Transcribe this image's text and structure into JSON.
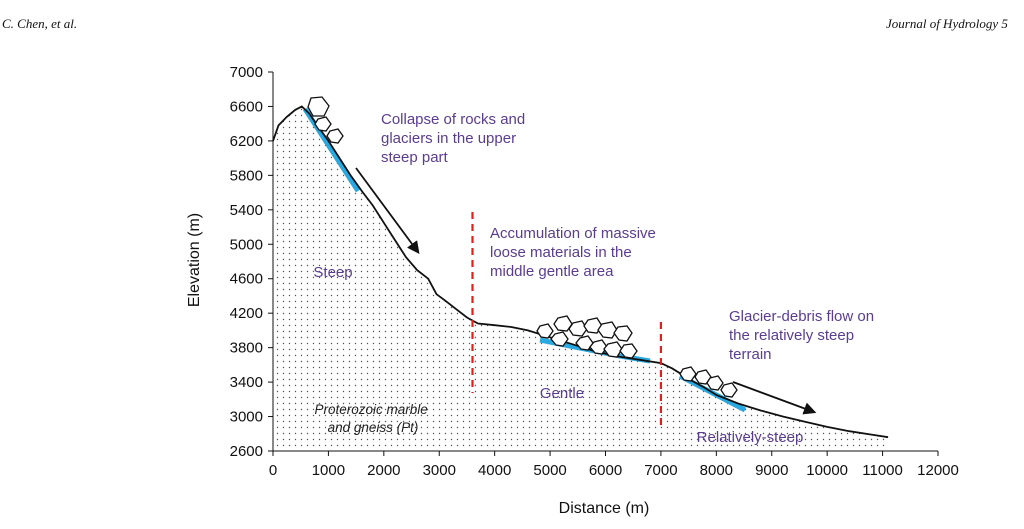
{
  "header": {
    "left": "C. Chen, et al.",
    "right": "Journal of Hydrology 5"
  },
  "chart_data": {
    "type": "line",
    "xlabel": "Distance (m)",
    "ylabel": "Elevation (m)",
    "xlim": [
      0,
      12000
    ],
    "ylim": [
      2600,
      7000
    ],
    "xticks": [
      "0",
      "1000",
      "2000",
      "3000",
      "4000",
      "5000",
      "6000",
      "7000",
      "8000",
      "9000",
      "10000",
      "11000",
      "12000"
    ],
    "yticks": [
      "2600",
      "3000",
      "3400",
      "3800",
      "4200",
      "4600",
      "5000",
      "5400",
      "5800",
      "6200",
      "6600",
      "7000"
    ],
    "grid": false,
    "series": [
      {
        "x": [
          0,
          100,
          250,
          400,
          520,
          650,
          800,
          1000,
          1200,
          1400,
          1600,
          1800,
          2000,
          2200,
          2400,
          2600,
          2800,
          2950,
          3100,
          3300,
          3500,
          3700,
          4000,
          4300,
          4600,
          5000,
          5400,
          5800,
          6200,
          6600,
          7000,
          7200,
          7400,
          7600,
          7800,
          8000,
          8400,
          8800,
          9200,
          9600,
          10000,
          10400,
          10800,
          11100
        ],
        "y": [
          6200,
          6380,
          6480,
          6560,
          6600,
          6520,
          6380,
          6200,
          6000,
          5800,
          5620,
          5450,
          5250,
          5050,
          4850,
          4700,
          4600,
          4420,
          4350,
          4250,
          4150,
          4080,
          4060,
          4040,
          4000,
          3920,
          3840,
          3760,
          3700,
          3660,
          3620,
          3560,
          3480,
          3400,
          3330,
          3250,
          3150,
          3070,
          3000,
          2940,
          2880,
          2830,
          2790,
          2760
        ]
      }
    ],
    "boundaries": [
      3600,
      7000
    ],
    "annotations": [
      [
        "Collapse of rocks and",
        "glaciers in the upper",
        "steep part"
      ],
      [
        "Accumulation of massive",
        "loose materials in the",
        "middle gentle area"
      ],
      [
        "Glacier-debris flow on",
        "the relatively steep",
        "terrain"
      ]
    ],
    "regions": [
      "Steep",
      "Gentle",
      "Relatively-steep"
    ],
    "lithology": [
      "Proterozoic marble",
      "and gneiss (Pt)"
    ],
    "colors": {
      "profile": "#111111",
      "flow": "#29a9e0",
      "boundary": "#e02020",
      "text": "#5a3d8f"
    }
  }
}
